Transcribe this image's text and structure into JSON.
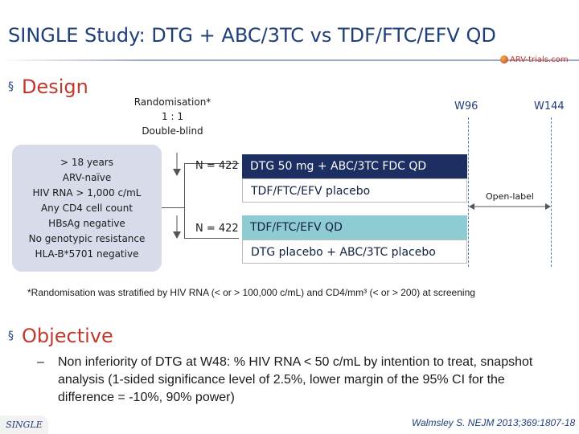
{
  "title": "SINGLE Study: DTG + ABC/3TC vs TDF/FTC/EFV QD",
  "logo": {
    "text": "ARV-trials.com",
    "icon": "globe-icon",
    "color": "#c0392b"
  },
  "sections": {
    "design": "Design",
    "objective": "Objective",
    "bullet_glyph": "§"
  },
  "randomisation": {
    "line1": "Randomisation*",
    "line2": "1 : 1",
    "line3": "Double-blind"
  },
  "criteria": [
    "> 18 years",
    "ARV-naïve",
    "HIV RNA > 1,000 c/mL",
    "Any CD4 cell count",
    "HBsAg negative",
    "No genotypic resistance",
    "HLA-B*5701 negative"
  ],
  "arms": [
    {
      "n_label": "N = 422",
      "active": "DTG 50 mg + ABC/3TC FDC QD",
      "placebo": "TDF/FTC/EFV placebo"
    },
    {
      "n_label": "N = 422",
      "active": "TDF/FTC/EFV QD",
      "placebo": "DTG placebo + ABC/3TC placebo"
    }
  ],
  "timepoints": {
    "w96": "W96",
    "w144": "W144"
  },
  "open_label": "Open-label",
  "footnote": "*Randomisation was stratified by HIV RNA (< or > 100,000 c/mL) and CD4/mm³ (< or > 200) at screening",
  "objective": {
    "dash": "–",
    "text": "Non inferiority of DTG at W48: % HIV RNA < 50 c/mL by intention to treat, snapshot analysis (1-sided significance level of 2.5%, lower margin of the 95% CI for the difference = -10%, 90% power)"
  },
  "footer": {
    "badge": "SINGLE",
    "citation": "Walmsley S. NEJM 2013;369:1807-18"
  },
  "colors": {
    "title": "#1f3f7a",
    "section": "#c0392b",
    "arm_dark": "#1c2e62",
    "arm_teal": "#8ecbd3",
    "criteria_bg": "#d8dcea"
  }
}
